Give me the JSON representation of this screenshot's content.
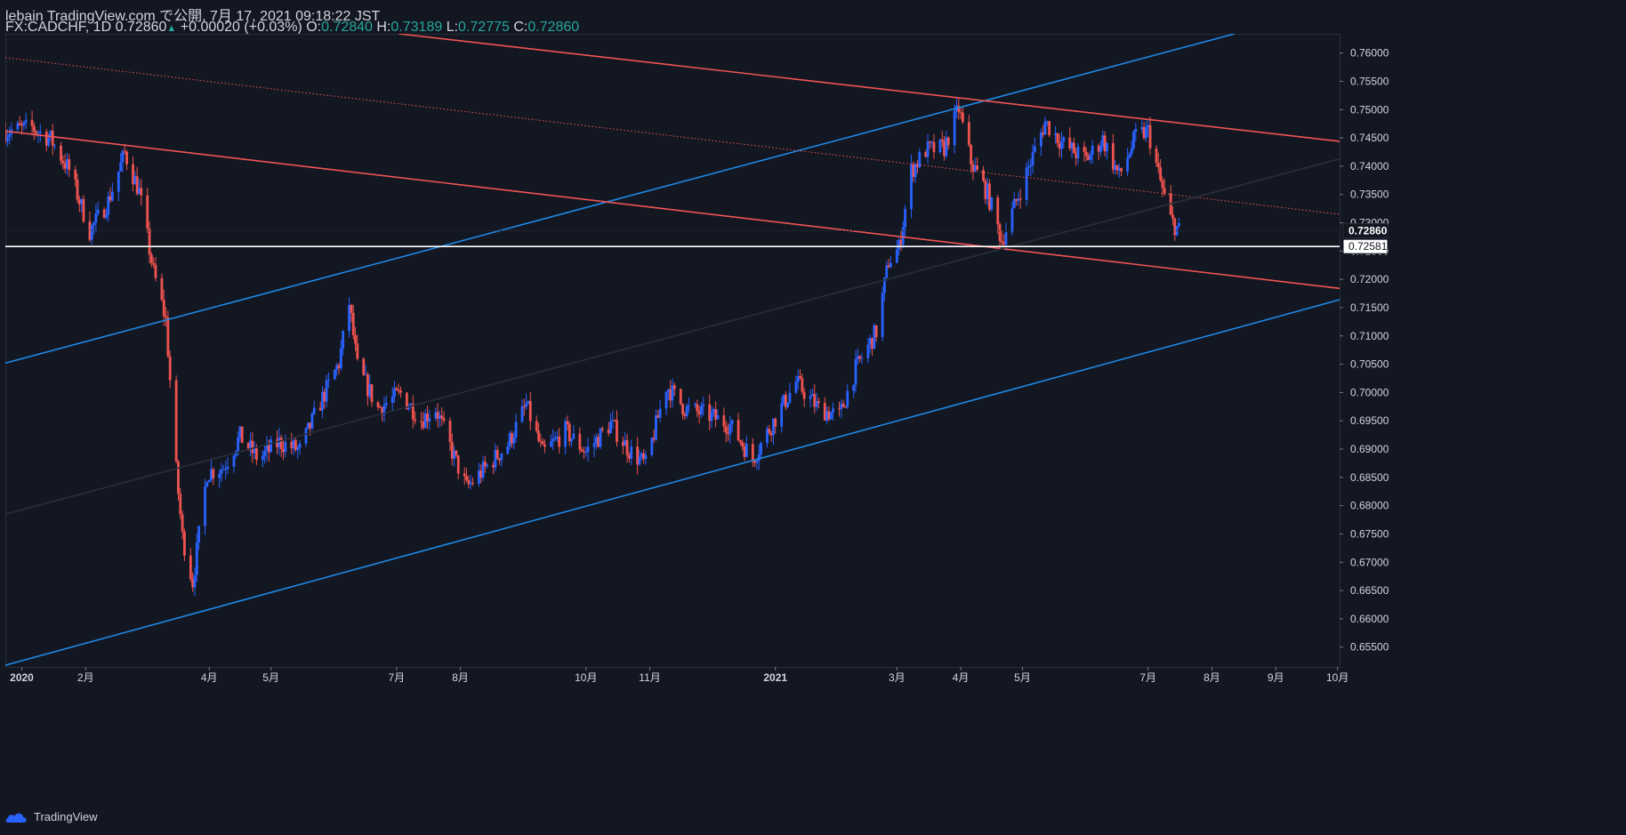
{
  "header": {
    "line1": "lebain TradingView.com で公開, 7月 17, 2021 09:18:22 JST",
    "symbol": "FX:CADCHF, 1D",
    "last": "0.72860",
    "change": "+0.00020 (+0.03%)",
    "o_label": "O:",
    "o_val": "0.72840",
    "h_label": "H:",
    "h_val": "0.73189",
    "l_label": "L:",
    "l_val": "0.72775",
    "c_label": "C:",
    "c_val": "0.72860"
  },
  "brand": {
    "name": "TradingView",
    "logo": "tradingview-cloud-icon"
  },
  "colors": {
    "background": "#131722",
    "up": "#2962ff",
    "down": "#ef5350",
    "grid_text": "#d1d4dc",
    "hline": "#ffffff",
    "channel_blue": "#1e88e5",
    "channel_red": "#f05454"
  },
  "chart_data": {
    "type": "candlestick",
    "symbol": "FX:CADCHF",
    "interval": "1D",
    "ylim": [
      0.6515,
      0.7634
    ],
    "y_ticks": [
      "0.76000",
      "0.75500",
      "0.75000",
      "0.74500",
      "0.74000",
      "0.73500",
      "0.73000",
      "0.72500",
      "0.72000",
      "0.71500",
      "0.71000",
      "0.70500",
      "0.70000",
      "0.69500",
      "0.69000",
      "0.68500",
      "0.68000",
      "0.67500",
      "0.67000",
      "0.66500",
      "0.66000",
      "0.65500"
    ],
    "x_ticks": [
      {
        "label": "2020",
        "date": "2020-01-01",
        "bold": true
      },
      {
        "label": "2月",
        "date": "2020-02-01"
      },
      {
        "label": "4月",
        "date": "2020-04-01"
      },
      {
        "label": "5月",
        "date": "2020-05-01"
      },
      {
        "label": "7月",
        "date": "2020-07-01"
      },
      {
        "label": "8月",
        "date": "2020-08-01"
      },
      {
        "label": "10月",
        "date": "2020-10-01"
      },
      {
        "label": "11月",
        "date": "2020-11-01"
      },
      {
        "label": "2021",
        "date": "2021-01-01",
        "bold": true
      },
      {
        "label": "3月",
        "date": "2021-03-01"
      },
      {
        "label": "4月",
        "date": "2021-04-01"
      },
      {
        "label": "5月",
        "date": "2021-05-01"
      },
      {
        "label": "7月",
        "date": "2021-07-01"
      },
      {
        "label": "8月",
        "date": "2021-08-01"
      },
      {
        "label": "9月",
        "date": "2021-09-01"
      },
      {
        "label": "10月",
        "date": "2021-10-01"
      }
    ],
    "last_price": {
      "label": "0.72860",
      "value": 0.7286
    },
    "horizontal_line": {
      "label": "0.72581",
      "value": 0.72581
    },
    "close_series": [
      [
        "2019-12-24",
        0.7462
      ],
      [
        "2020-01-06",
        0.7468
      ],
      [
        "2020-01-15",
        0.7448
      ],
      [
        "2020-01-24",
        0.7393
      ],
      [
        "2020-02-03",
        0.7285
      ],
      [
        "2020-02-12",
        0.7338
      ],
      [
        "2020-02-20",
        0.7423
      ],
      [
        "2020-02-27",
        0.7355
      ],
      [
        "2020-03-05",
        0.7212
      ],
      [
        "2020-03-11",
        0.7128
      ],
      [
        "2020-03-16",
        0.6862
      ],
      [
        "2020-03-19",
        0.6745
      ],
      [
        "2020-03-24",
        0.6665
      ],
      [
        "2020-03-31",
        0.6858
      ],
      [
        "2020-04-08",
        0.6868
      ],
      [
        "2020-04-16",
        0.6922
      ],
      [
        "2020-04-25",
        0.6882
      ],
      [
        "2020-05-05",
        0.6912
      ],
      [
        "2020-05-15",
        0.6898
      ],
      [
        "2020-05-25",
        0.6982
      ],
      [
        "2020-06-03",
        0.7052
      ],
      [
        "2020-06-08",
        0.7158
      ],
      [
        "2020-06-12",
        0.7045
      ],
      [
        "2020-06-22",
        0.6972
      ],
      [
        "2020-07-03",
        0.6998
      ],
      [
        "2020-07-13",
        0.6952
      ],
      [
        "2020-07-20",
        0.6972
      ],
      [
        "2020-07-28",
        0.6895
      ],
      [
        "2020-08-04",
        0.6832
      ],
      [
        "2020-08-12",
        0.6862
      ],
      [
        "2020-08-24",
        0.6908
      ],
      [
        "2020-09-02",
        0.6978
      ],
      [
        "2020-09-10",
        0.6892
      ],
      [
        "2020-09-21",
        0.6932
      ],
      [
        "2020-10-01",
        0.6895
      ],
      [
        "2020-10-13",
        0.6945
      ],
      [
        "2020-10-22",
        0.6898
      ],
      [
        "2020-10-30",
        0.6872
      ],
      [
        "2020-11-09",
        0.7012
      ],
      [
        "2020-11-18",
        0.6972
      ],
      [
        "2020-12-01",
        0.6958
      ],
      [
        "2020-12-10",
        0.6942
      ],
      [
        "2020-12-21",
        0.6882
      ],
      [
        "2020-12-30",
        0.6942
      ],
      [
        "2021-01-11",
        0.7018
      ],
      [
        "2021-01-22",
        0.6972
      ],
      [
        "2021-02-01",
        0.6958
      ],
      [
        "2021-02-09",
        0.7042
      ],
      [
        "2021-02-19",
        0.7108
      ],
      [
        "2021-02-25",
        0.7232
      ],
      [
        "2021-03-02",
        0.7255
      ],
      [
        "2021-03-08",
        0.7392
      ],
      [
        "2021-03-15",
        0.7428
      ],
      [
        "2021-03-24",
        0.7432
      ],
      [
        "2021-03-31",
        0.7502
      ],
      [
        "2021-04-06",
        0.7408
      ],
      [
        "2021-04-14",
        0.7352
      ],
      [
        "2021-04-21",
        0.7268
      ],
      [
        "2021-04-26",
        0.7318
      ],
      [
        "2021-05-04",
        0.7398
      ],
      [
        "2021-05-12",
        0.7478
      ],
      [
        "2021-05-21",
        0.7438
      ],
      [
        "2021-06-01",
        0.7412
      ],
      [
        "2021-06-09",
        0.7448
      ],
      [
        "2021-06-17",
        0.7382
      ],
      [
        "2021-06-25",
        0.7452
      ],
      [
        "2021-07-01",
        0.7462
      ],
      [
        "2021-07-07",
        0.7372
      ],
      [
        "2021-07-12",
        0.7305
      ],
      [
        "2021-07-16",
        0.7286
      ]
    ],
    "trendlines": [
      {
        "color": "#1e88e5",
        "style": "solid",
        "points": [
          [
            "2019-12-24",
            0.7052
          ],
          [
            "2021-08-12",
            0.7634
          ]
        ]
      },
      {
        "color": "#1e88e5",
        "style": "solid",
        "points": [
          [
            "2019-12-24",
            0.6518
          ],
          [
            "2021-10-02",
            0.7164
          ]
        ]
      },
      {
        "color": "#f05454",
        "style": "solid",
        "points": [
          [
            "2020-07-02",
            0.7634
          ],
          [
            "2021-10-02",
            0.7444
          ]
        ]
      },
      {
        "color": "#f05454",
        "style": "solid",
        "points": [
          [
            "2019-12-24",
            0.7462
          ],
          [
            "2021-10-02",
            0.7184
          ]
        ]
      },
      {
        "color": "#f05454",
        "style": "dotted",
        "points": [
          [
            "2019-12-24",
            0.7592
          ],
          [
            "2021-10-02",
            0.7315
          ]
        ]
      },
      {
        "color": "#2a2e39",
        "style": "solid",
        "points": [
          [
            "2019-12-24",
            0.6785
          ],
          [
            "2021-10-02",
            0.7413
          ]
        ]
      }
    ]
  }
}
